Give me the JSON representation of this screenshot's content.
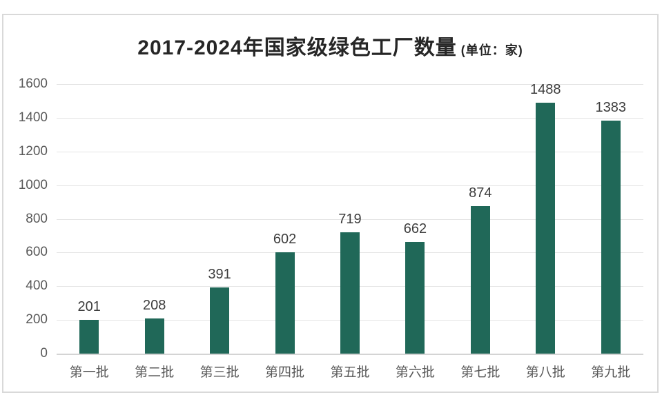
{
  "chart_data": {
    "type": "bar",
    "title": "2017-2024年国家级绿色工厂数量",
    "title_suffix": "(单位：家)",
    "categories": [
      "第一批",
      "第二批",
      "第三批",
      "第四批",
      "第五批",
      "第六批",
      "第七批",
      "第八批",
      "第九批"
    ],
    "values": [
      201,
      208,
      391,
      602,
      719,
      662,
      874,
      1488,
      1383
    ],
    "xlabel": "",
    "ylabel": "",
    "ylim": [
      0,
      1600
    ],
    "yticks": [
      0,
      200,
      400,
      600,
      800,
      1000,
      1200,
      1400,
      1600
    ],
    "grid": true,
    "legend": "none",
    "bar_color": "#206858",
    "value_label_color": "#3d3d3d",
    "axis_text_color": "#595959",
    "gridline_color": "#e4e4e4",
    "axis_line_color": "#d4d4d4",
    "title_color": "#262626",
    "card_border_color": "#d9d9d9",
    "background_color": "#ffffff"
  }
}
